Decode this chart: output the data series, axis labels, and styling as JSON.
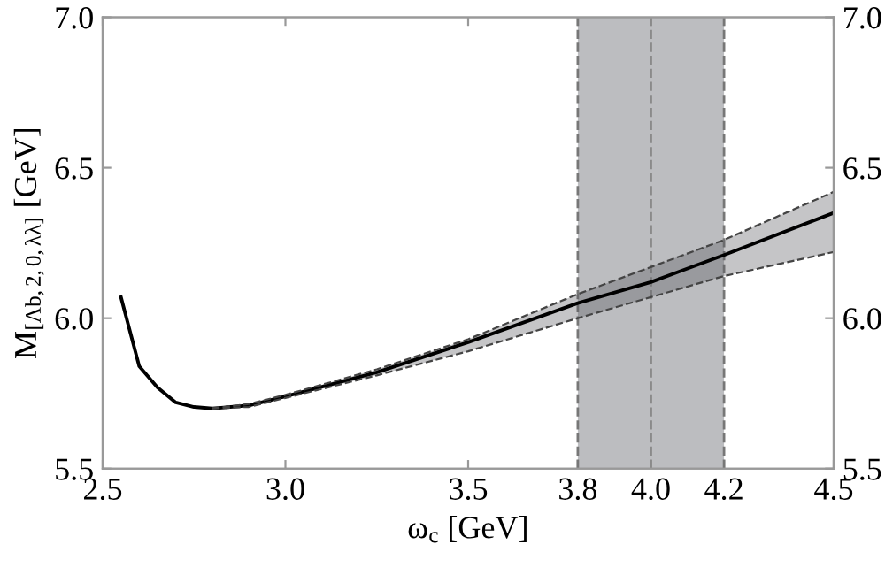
{
  "chart_data": {
    "type": "line",
    "xlabel": "ω$_{c}$ [GeV]",
    "ylabel": "M$_{[Λb,2,0,λλ]}$ [GeV]",
    "xlim": [
      2.5,
      4.5
    ],
    "xticks": [
      {
        "value": 2.5,
        "label": "2.5"
      },
      {
        "value": 3,
        "label": "3.0"
      },
      {
        "value": 3.5,
        "label": "3.5"
      },
      {
        "value": 3.8,
        "label": "3.8"
      },
      {
        "value": 4,
        "label": "4.0"
      },
      {
        "value": 4.2,
        "label": "4.2"
      },
      {
        "value": 4.5,
        "label": "4.5"
      }
    ],
    "ylim": [
      5.5,
      7.0
    ],
    "yticks": [
      {
        "value": 5.5,
        "label": "5.5"
      },
      {
        "value": 6,
        "label": "6.0"
      },
      {
        "value": 6.5,
        "label": "6.5"
      },
      {
        "value": 7,
        "label": "7.0"
      }
    ],
    "y2lim": [
      5.5,
      7.0
    ],
    "y2ticks": [
      {
        "value": 5.5,
        "label": "5.5"
      },
      {
        "value": 6,
        "label": "6.0"
      },
      {
        "value": 6.5,
        "label": "6.5"
      },
      {
        "value": 7,
        "label": "7.0"
      }
    ],
    "marker": "none",
    "line_style": "solid",
    "series": [
      {
        "color": "#000000",
        "x": [
          2.55,
          2.6,
          2.65,
          2.7,
          2.75,
          2.8,
          2.9,
          3.0,
          3.25,
          3.5,
          3.8,
          4.0,
          4.2,
          4.5
        ],
        "values": [
          6.07,
          5.84,
          5.77,
          5.72,
          5.705,
          5.7,
          5.71,
          5.74,
          5.82,
          5.92,
          6.05,
          6.12,
          6.21,
          6.35
        ],
        "lower": [
          null,
          null,
          null,
          null,
          null,
          5.7,
          5.705,
          5.735,
          5.81,
          5.89,
          6.0,
          6.07,
          6.14,
          6.22
        ],
        "upper": [
          null,
          null,
          null,
          null,
          null,
          5.7,
          5.715,
          5.745,
          5.83,
          5.93,
          6.08,
          6.17,
          6.26,
          6.42
        ]
      },
      {
        "color": "#444444",
        "line_style": "dashed",
        "x": [
          2.8,
          2.9,
          3.0,
          3.25,
          3.5,
          3.8,
          4.0,
          4.2,
          4.5
        ],
        "values": [
          5.7,
          5.705,
          5.735,
          5.81,
          5.89,
          6.0,
          6.07,
          6.14,
          6.22
        ]
      },
      {
        "color": "#444444",
        "line_style": "dashed",
        "x": [
          2.8,
          2.9,
          3.0,
          3.25,
          3.5,
          3.8,
          4.0,
          4.2,
          4.5
        ],
        "values": [
          5.7,
          5.715,
          5.745,
          5.83,
          5.93,
          6.08,
          6.17,
          6.26,
          6.42
        ]
      }
    ],
    "bands": [
      {
        "axis": "x",
        "from": 3.8,
        "to": 4.2,
        "color": "#bcbdc0"
      }
    ],
    "ref_lines": [
      {
        "axis": "x",
        "value": 3.8,
        "color": "#777777",
        "line_style": "dashed"
      },
      {
        "axis": "x",
        "value": 4.0,
        "color": "#8a8a8a",
        "line_style": "dashed"
      },
      {
        "axis": "x",
        "value": 4.2,
        "color": "#777777",
        "line_style": "dashed"
      }
    ]
  }
}
